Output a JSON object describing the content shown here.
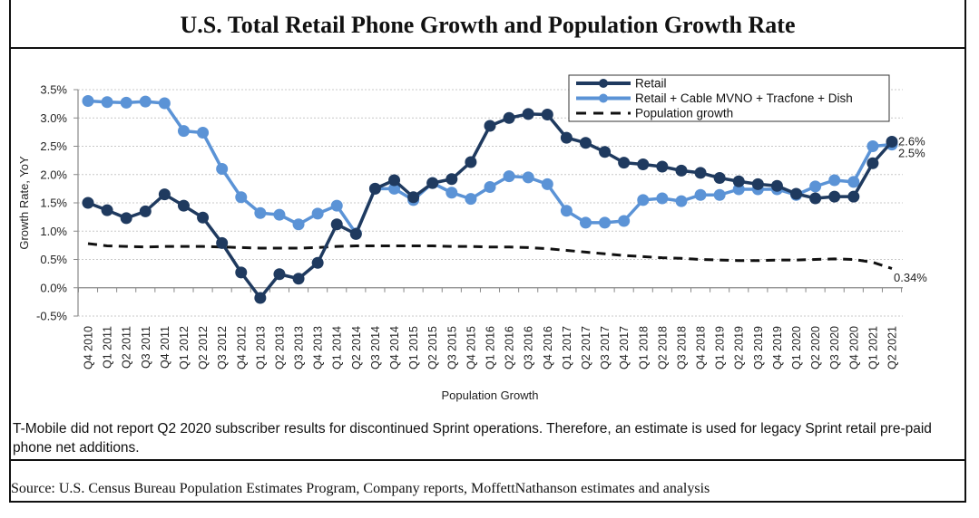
{
  "title": "U.S. Total Retail Phone Growth and Population Growth Rate",
  "note": "T-Mobile did not report Q2 2020 subscriber results for discontinued Sprint operations. Therefore, an estimate is used for legacy Sprint retail pre-paid phone net additions.",
  "source": "Source: U.S. Census Bureau Population Estimates Program, Company reports, MoffettNathanson estimates and analysis",
  "colors": {
    "retail": "#1F3A5F",
    "retail_plus": "#5B93D6",
    "population": "#111111",
    "grid": "#c8c8c8"
  },
  "chart_data": {
    "type": "line",
    "title": "U.S. Total Retail Phone Growth and Population Growth Rate",
    "xlabel": "Population Growth",
    "ylabel": "Growth Rate, YoY",
    "ylim": [
      -0.5,
      3.5
    ],
    "yticks": [
      -0.5,
      0.0,
      0.5,
      1.0,
      1.5,
      2.0,
      2.5,
      3.0,
      3.5
    ],
    "ytick_labels": [
      "-0.5%",
      "0.0%",
      "0.5%",
      "1.0%",
      "1.5%",
      "2.0%",
      "2.5%",
      "3.0%",
      "3.5%"
    ],
    "grid": true,
    "legend": "top-right",
    "categories": [
      "Q4 2010",
      "Q1 2011",
      "Q2 2011",
      "Q3 2011",
      "Q4 2011",
      "Q1 2012",
      "Q2 2012",
      "Q3 2012",
      "Q4 2012",
      "Q1 2013",
      "Q2 2013",
      "Q3 2013",
      "Q4 2013",
      "Q1 2014",
      "Q2 2014",
      "Q3 2014",
      "Q4 2014",
      "Q1 2015",
      "Q2 2015",
      "Q3 2015",
      "Q4 2015",
      "Q1 2016",
      "Q2 2016",
      "Q3 2016",
      "Q4 2016",
      "Q1 2017",
      "Q2 2017",
      "Q3 2017",
      "Q4 2017",
      "Q1 2018",
      "Q2 2018",
      "Q3 2018",
      "Q4 2018",
      "Q1 2019",
      "Q2 2019",
      "Q3 2019",
      "Q4 2019",
      "Q1 2020",
      "Q2 2020",
      "Q3 2020",
      "Q4 2020",
      "Q1 2021",
      "Q2 2021"
    ],
    "series": [
      {
        "name": "Retail",
        "style": "line-marker",
        "color_key": "retail",
        "values": [
          1.5,
          1.37,
          1.23,
          1.35,
          1.65,
          1.45,
          1.24,
          0.79,
          0.27,
          -0.18,
          0.24,
          0.16,
          0.44,
          1.12,
          0.95,
          1.75,
          1.9,
          1.6,
          1.85,
          1.92,
          2.22,
          2.86,
          3.0,
          3.07,
          3.06,
          2.65,
          2.56,
          2.4,
          2.21,
          2.18,
          2.14,
          2.07,
          2.03,
          1.94,
          1.88,
          1.83,
          1.8,
          1.66,
          1.58,
          1.61,
          1.61,
          2.2,
          2.58
        ],
        "end_label": "2.6%"
      },
      {
        "name": "Retail + Cable MVNO + Tracfone + Dish",
        "style": "line-marker",
        "color_key": "retail_plus",
        "values": [
          3.3,
          3.28,
          3.27,
          3.29,
          3.26,
          2.77,
          2.74,
          2.1,
          1.6,
          1.32,
          1.29,
          1.12,
          1.31,
          1.45,
          0.96,
          1.75,
          1.75,
          1.55,
          1.85,
          1.68,
          1.57,
          1.78,
          1.97,
          1.95,
          1.83,
          1.36,
          1.15,
          1.15,
          1.18,
          1.55,
          1.58,
          1.53,
          1.64,
          1.64,
          1.74,
          1.74,
          1.74,
          1.64,
          1.79,
          1.9,
          1.87,
          2.5,
          2.53
        ],
        "end_label": "2.5%"
      },
      {
        "name": "Population growth",
        "style": "dashed",
        "color_key": "population",
        "values": [
          0.78,
          0.74,
          0.73,
          0.72,
          0.73,
          0.73,
          0.73,
          0.72,
          0.71,
          0.7,
          0.7,
          0.7,
          0.71,
          0.73,
          0.74,
          0.74,
          0.74,
          0.74,
          0.74,
          0.73,
          0.73,
          0.72,
          0.72,
          0.71,
          0.69,
          0.66,
          0.63,
          0.6,
          0.57,
          0.55,
          0.53,
          0.52,
          0.5,
          0.49,
          0.48,
          0.48,
          0.49,
          0.49,
          0.5,
          0.51,
          0.5,
          0.45,
          0.34
        ],
        "end_label": "0.34%"
      }
    ]
  }
}
